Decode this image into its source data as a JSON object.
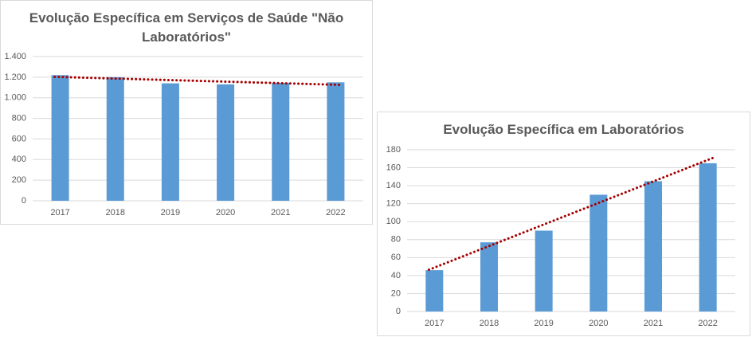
{
  "chart_data": [
    {
      "type": "bar",
      "title": "Evolução Específica em Serviços de Saúde \"Não Laboratórios\"",
      "categories": [
        "2017",
        "2018",
        "2019",
        "2020",
        "2021",
        "2022"
      ],
      "values": [
        1220,
        1200,
        1140,
        1130,
        1145,
        1150
      ],
      "color": "#5b9bd5",
      "ylim": [
        0,
        1400
      ],
      "yticks": [
        0,
        200,
        400,
        600,
        800,
        {
          "value": 1000,
          "label": "1.000"
        },
        {
          "value": 1200,
          "label": "1.200"
        },
        {
          "value": 1400,
          "label": "1.400"
        }
      ],
      "grid": true,
      "trendline": "linear",
      "trendline_color": "#a50000"
    },
    {
      "type": "bar",
      "title": "Evolução Específica em Laboratórios",
      "categories": [
        "2017",
        "2018",
        "2019",
        "2020",
        "2021",
        "2022"
      ],
      "values": [
        46,
        77,
        90,
        130,
        145,
        165
      ],
      "color": "#5b9bd5",
      "ylim": [
        0,
        180
      ],
      "yticks": [
        0,
        20,
        40,
        60,
        80,
        100,
        120,
        140,
        160,
        180
      ],
      "grid": true,
      "trendline": "linear",
      "trendline_color": "#a50000"
    }
  ]
}
